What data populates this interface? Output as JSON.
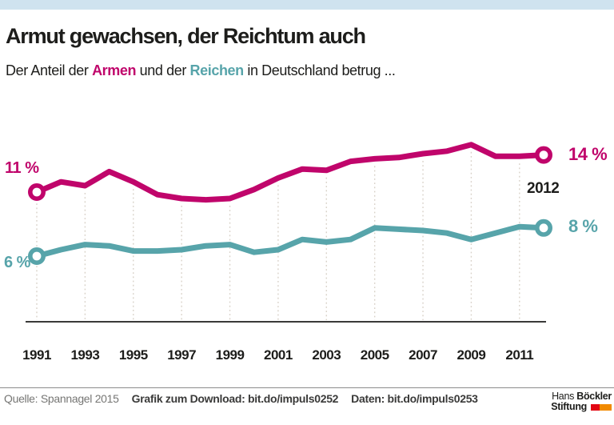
{
  "page": {
    "accent_bar_color": "#cfe3ef",
    "background": "#ffffff"
  },
  "header": {
    "title": "Armut gewachsen, der Reichtum auch",
    "subtitle": {
      "prefix": "Der Anteil der ",
      "poor_word": "Armen",
      "mid": " und der ",
      "rich_word": "Reichen",
      "suffix": " in Deutschland betrug ..."
    }
  },
  "chart_data": {
    "type": "line",
    "title": "Armut gewachsen, der Reichtum auch",
    "subtitle": "Der Anteil der Armen und der Reichen in Deutschland betrug ...",
    "x": [
      1991,
      1992,
      1993,
      1994,
      1995,
      1996,
      1997,
      1998,
      1999,
      2000,
      2001,
      2002,
      2003,
      2004,
      2005,
      2006,
      2007,
      2008,
      2009,
      2010,
      2011,
      2012
    ],
    "x_ticks": [
      1991,
      1993,
      1995,
      1997,
      1999,
      2001,
      2003,
      2005,
      2007,
      2009,
      2011
    ],
    "ylim": [
      5,
      16
    ],
    "grid": "dotted-vertical",
    "legend_position": "none",
    "grid_color": "#d8d1c8",
    "axis_color": "#3a3a39",
    "end_year_label": "2012",
    "series": [
      {
        "key": "armen",
        "name": "Armen",
        "color": "#c0056b",
        "start_label": "11 %",
        "end_label": "14 %",
        "values": [
          11.0,
          11.8,
          11.5,
          12.6,
          11.8,
          10.8,
          10.5,
          10.4,
          10.5,
          11.2,
          12.1,
          12.8,
          12.7,
          13.4,
          13.6,
          13.7,
          14.0,
          14.2,
          14.7,
          13.8,
          13.8,
          13.9
        ]
      },
      {
        "key": "reichen",
        "name": "Reichen",
        "color": "#57a4aa",
        "start_label": "6 %",
        "end_label": "8 %",
        "values": [
          6.0,
          6.5,
          6.9,
          6.8,
          6.4,
          6.4,
          6.5,
          6.8,
          6.9,
          6.3,
          6.5,
          7.3,
          7.1,
          7.3,
          8.2,
          8.1,
          8.0,
          7.8,
          7.3,
          7.8,
          8.3,
          8.2
        ]
      }
    ]
  },
  "footer": {
    "source": "Quelle: Spannagel 2015",
    "download": "Grafik zum Download: bit.do/impuls0252",
    "data": "Daten: bit.do/impuls0253"
  },
  "logo": {
    "name_regular": "Hans ",
    "name_bold": "Böckler",
    "line2": "Stiftung",
    "red": "#e20613",
    "orange": "#f18a00"
  }
}
